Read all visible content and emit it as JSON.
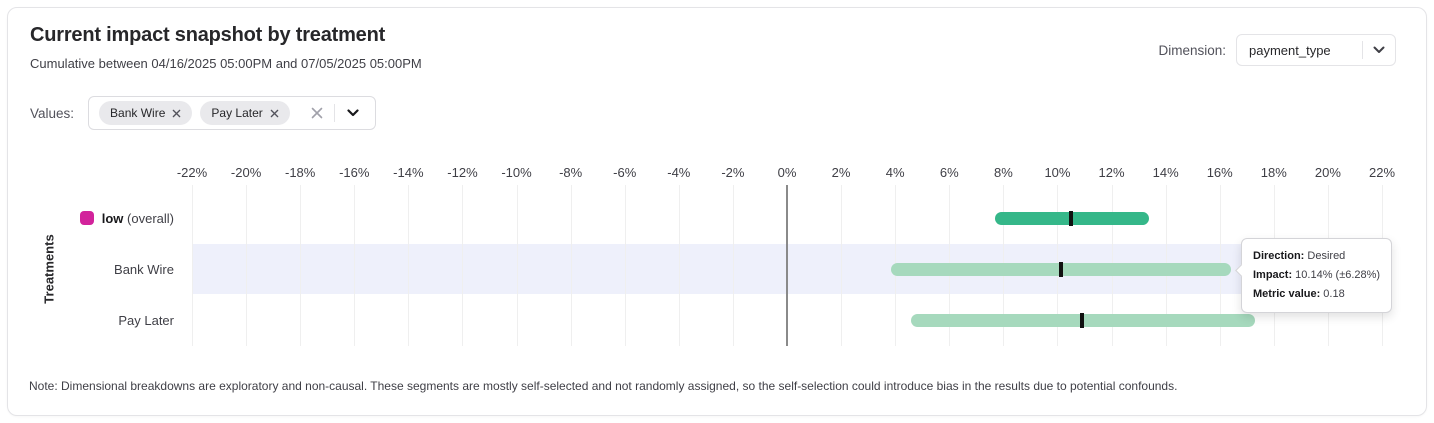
{
  "card": {
    "title": "Current impact snapshot by treatment",
    "subtitle": "Cumulative between 04/16/2025 05:00PM and 07/05/2025 05:00PM",
    "note": "Note: Dimensional breakdowns are exploratory and non-causal. These segments are mostly self-selected and not randomly assigned, so the self-selection could introduce bias in the results due to potential confounds."
  },
  "dimension": {
    "label": "Dimension:",
    "value": "payment_type"
  },
  "values_filter": {
    "label": "Values:",
    "chips": [
      {
        "label": "Bank Wire"
      },
      {
        "label": "Pay Later"
      }
    ],
    "clear_icon": "x-clear",
    "dropdown_icon": "chevron-down"
  },
  "tooltip": {
    "rows": [
      {
        "label": "Direction:",
        "value": "Desired"
      },
      {
        "label": "Impact:",
        "value": "10.14% (±6.28%)"
      },
      {
        "label": "Metric value:",
        "value": "0.18"
      }
    ]
  },
  "chart_data": {
    "type": "bar",
    "orientation": "horizontal_range",
    "ylabel": "Treatments",
    "xlim": [
      -22,
      22
    ],
    "x_ticks": [
      -22,
      -20,
      -18,
      -16,
      -14,
      -12,
      -10,
      -8,
      -6,
      -4,
      -2,
      0,
      2,
      4,
      6,
      8,
      10,
      12,
      14,
      16,
      18,
      20,
      22
    ],
    "x_tick_suffix": "%",
    "grid": true,
    "categories": [
      "low (overall)",
      "Bank Wire",
      "Pay Later"
    ],
    "rows": [
      {
        "label": "low",
        "label_bold": true,
        "label_suffix": " (overall)",
        "swatch_color": "#d2239b",
        "bar_color": "#35b789",
        "low": 7.7,
        "high": 13.4,
        "center": 10.5,
        "highlighted": false
      },
      {
        "label": "Bank Wire",
        "label_bold": false,
        "bar_color": "#a6d9bd",
        "low": 3.86,
        "high": 16.42,
        "center": 10.14,
        "highlighted": true
      },
      {
        "label": "Pay Later",
        "label_bold": false,
        "bar_color": "#a6d9bd",
        "low": 4.6,
        "high": 17.3,
        "center": 10.9,
        "highlighted": false
      }
    ],
    "colors": {
      "band": "#eef0fb",
      "marker": "#111111",
      "zero_line": "#8a8a8a",
      "gridline": "#efefef"
    }
  }
}
